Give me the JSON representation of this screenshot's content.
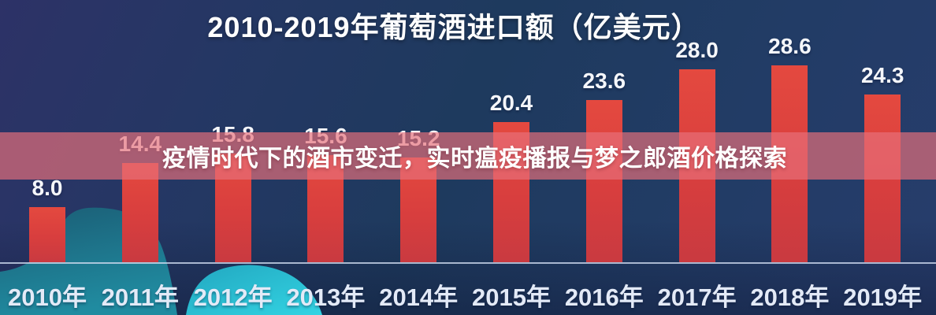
{
  "chart_data": {
    "type": "bar",
    "title": "2010-2019年葡萄酒进口额（亿美元）",
    "categories": [
      "2010年",
      "2011年",
      "2012年",
      "2013年",
      "2014年",
      "2015年",
      "2016年",
      "2017年",
      "2018年",
      "2019年"
    ],
    "values": [
      8.0,
      14.4,
      15.8,
      15.6,
      15.2,
      20.4,
      23.6,
      28.0,
      28.6,
      24.3
    ],
    "unit": "亿美元",
    "ylim": [
      0,
      30
    ],
    "grid": false,
    "legend": "none",
    "value_labels": "above bars, one decimal",
    "bar_color": "#d8403f"
  },
  "overlay": {
    "banner_text": "疫情时代下的酒市变迁，实时瘟疫播报与梦之郎酒价格探索",
    "band_color": "#e77080"
  },
  "colors": {
    "background_steel_blue": "#1e3a5e",
    "background_indigo": "#2d3267",
    "bar_red": "#d8403f",
    "band_pink": "#e77080",
    "blob_teal_dark": "#1b5d75",
    "blob_teal": "#208ba0",
    "blob_cyan": "#33d4e3",
    "axis_line": "#cddaee",
    "text_white": "#ffffff"
  }
}
